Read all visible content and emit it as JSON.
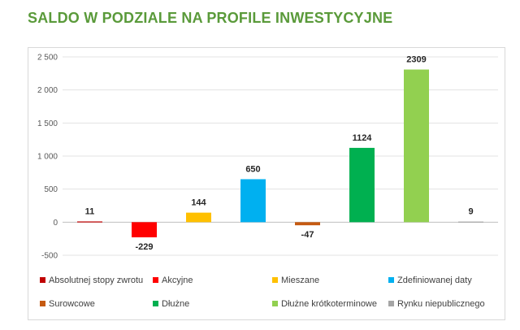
{
  "header": {
    "title": "SALDO W PODZIALE NA PROFILE INWESTYCYJNE"
  },
  "chart_data": {
    "type": "bar",
    "title": "SALDO W PODZIALE NA PROFILE INWESTYCYJNE",
    "xlabel": "",
    "ylabel": "",
    "ylim": [
      -500,
      2500
    ],
    "yticks": [
      -500,
      0,
      500,
      1000,
      1500,
      2000,
      2500
    ],
    "ytick_labels": [
      "-500",
      "0",
      "500",
      "1 000",
      "1 500",
      "2 000",
      "2 500"
    ],
    "grid": true,
    "legend_position": "bottom",
    "series": [
      {
        "name": "Absolutnej stopy zwrotu",
        "value": 11,
        "label": "11",
        "color": "#c00000"
      },
      {
        "name": "Akcyjne",
        "value": -229,
        "label": "-229",
        "color": "#ff0000"
      },
      {
        "name": "Mieszane",
        "value": 144,
        "label": "144",
        "color": "#ffc000"
      },
      {
        "name": "Zdefiniowanej daty",
        "value": 650,
        "label": "650",
        "color": "#00b0f0"
      },
      {
        "name": "Surowcowe",
        "value": -47,
        "label": "-47",
        "color": "#c55a11"
      },
      {
        "name": "Dłużne",
        "value": 1124,
        "label": "1124",
        "color": "#00b050"
      },
      {
        "name": "Dłużne krótkoterminowe",
        "value": 2309,
        "label": "2309",
        "color": "#92d050"
      },
      {
        "name": "Rynku niepublicznego",
        "value": 9,
        "label": "9",
        "color": "#a5a5a5"
      }
    ]
  }
}
